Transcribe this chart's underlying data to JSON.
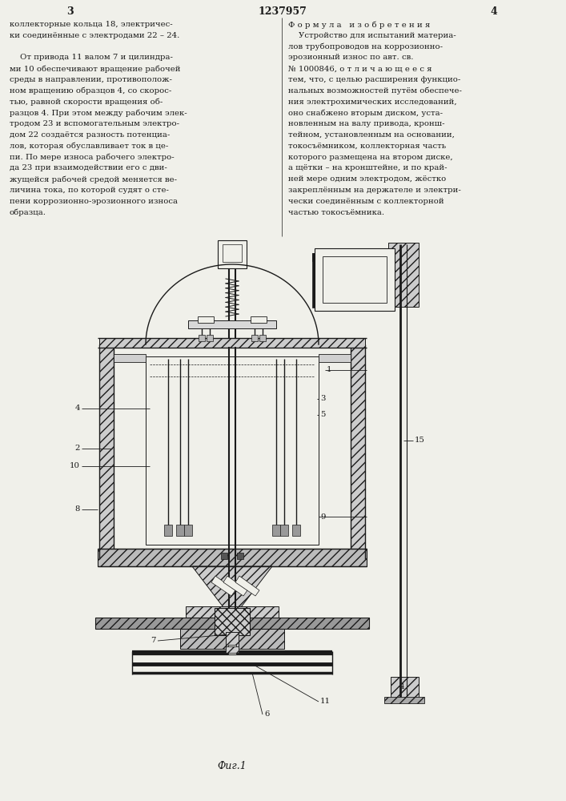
{
  "page_number_left": "3",
  "page_number_center": "1237957",
  "page_number_right": "4",
  "left_text": [
    "коллекторные кольца 18, электричес-",
    "ки соединённые с электродами 22 – 24.",
    "",
    "    От привода 11 валом 7 и цилиндра-",
    "ми 10 обеспечивают вращение рабочей",
    "среды в направлении, противополож-",
    "ном вращению образцов 4, со скорос-",
    "тью, равной скорости вращения об-",
    "разцов 4. При этом между рабочим элек-",
    "тродом 23 и вспомогательным электро-",
    "дом 22 создаётся разность потенциа-",
    "лов, которая обуславливает ток в це-",
    "пи. По мере износа рабочего электро-",
    "да 23 при взаимодействии его с дви-",
    "жущейся рабочей средой меняется ве-",
    "личина тока, по которой судят о сте-",
    "пени коррозионно-эрозионного износа",
    "образца."
  ],
  "right_text": [
    "Ф о р м у л а   и з о б р е т е н и я",
    "    Устройство для испытаний материа-",
    "лов трубопроводов на коррозионно-",
    "эрозионный износ по авт. св.",
    "№ 1000846, о т л и ч а ю щ е е с я",
    "тем, что, с целью расширения функцио-",
    "нальных возможностей путём обеспече-",
    "ния электрохимических исследований,",
    "оно снабжено вторым диском, уста-",
    "новленным на валу привода, кронш-",
    "тейном, установленным на основании,",
    "токосъёмником, коллекторная часть",
    "которого размещена на втором диске,",
    "а щётки – на кронштейне, и по край-",
    "ней мере одним электродом, жёстко",
    "закреплённым на держателе и электри-",
    "чески соединённым с коллекторной",
    "частью токосъёмника."
  ],
  "fig_caption": "Фиг.1",
  "bg": "#f0f0ea",
  "fg": "#1a1a1a"
}
